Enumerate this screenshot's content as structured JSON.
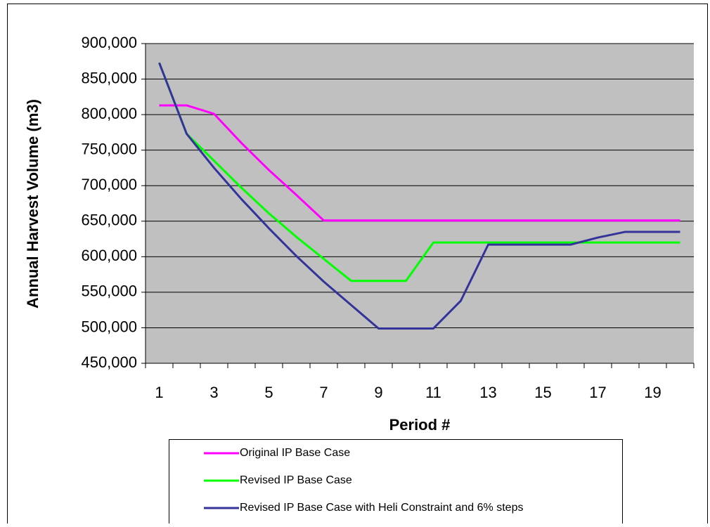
{
  "chart_data": {
    "type": "line",
    "y_label": "Annual Harvest Volume (m3)",
    "x_label": "Period #",
    "categories": [
      "1",
      null,
      "3",
      null,
      "5",
      null,
      "7",
      null,
      "9",
      null,
      "11",
      null,
      "13",
      null,
      "15",
      null,
      "17",
      null,
      "19",
      null
    ],
    "series": [
      {
        "name": "Original IP Base Case",
        "color": "#ff00ff",
        "values": [
          813000,
          813000,
          801000,
          760000,
          722000,
          687000,
          651000,
          651000,
          651000,
          651000,
          651000,
          651000,
          651000,
          651000,
          651000,
          651000,
          651000,
          651000,
          651000,
          651000
        ]
      },
      {
        "name": "Revised IP Base Case",
        "color": "#00ff00",
        "values": [
          873000,
          773000,
          735000,
          697000,
          661000,
          628000,
          597000,
          566000,
          566000,
          566000,
          620000,
          620000,
          620000,
          620000,
          620000,
          620000,
          620000,
          620000,
          620000,
          620000
        ]
      },
      {
        "name": "Revised IP Base Case with Heli Constraint and 6% steps",
        "color": "#333399",
        "values": [
          873000,
          773000,
          725000,
          681000,
          640000,
          601000,
          565000,
          532000,
          499000,
          499000,
          499000,
          538000,
          617000,
          617000,
          617000,
          617000,
          627000,
          635000,
          635000,
          635000
        ]
      }
    ],
    "ylim": [
      450000,
      900000
    ],
    "yticks": [
      {
        "value": 450000,
        "label": "450,000"
      },
      {
        "value": 500000,
        "label": "500,000"
      },
      {
        "value": 550000,
        "label": "550,000"
      },
      {
        "value": 600000,
        "label": "600,000"
      },
      {
        "value": 650000,
        "label": "650,000"
      },
      {
        "value": 700000,
        "label": "700,000"
      },
      {
        "value": 750000,
        "label": "750,000"
      },
      {
        "value": 800000,
        "label": "800,000"
      },
      {
        "value": 850000,
        "label": "850,000"
      },
      {
        "value": 900000,
        "label": "900,000"
      }
    ],
    "grid": true,
    "plot_background": "#c0c0c0"
  }
}
